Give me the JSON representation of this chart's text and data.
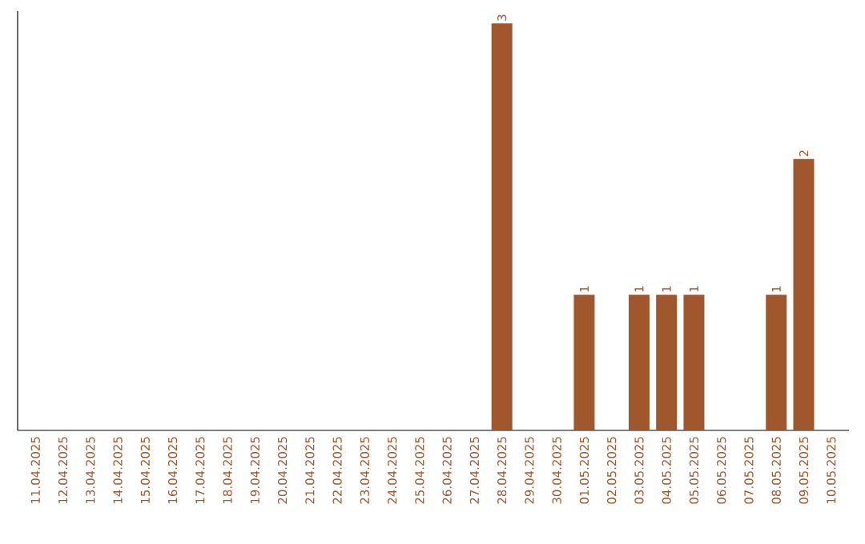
{
  "chart_data": {
    "type": "bar",
    "color": "#a0572b",
    "data_labels": true,
    "categories": [
      "11.04.2025",
      "12.04.2025",
      "13.04.2025",
      "14.04.2025",
      "15.04.2025",
      "16.04.2025",
      "17.04.2025",
      "18.04.2025",
      "19.04.2025",
      "20.04.2025",
      "21.04.2025",
      "22.04.2025",
      "23.04.2025",
      "24.04.2025",
      "25.04.2025",
      "26.04.2025",
      "27.04.2025",
      "28.04.2025",
      "29.04.2025",
      "30.04.2025",
      "01.05.2025",
      "02.05.2025",
      "03.05.2025",
      "04.05.2025",
      "05.05.2025",
      "06.05.2025",
      "07.05.2025",
      "08.05.2025",
      "09.05.2025",
      "10.05.2025"
    ],
    "values": [
      null,
      null,
      null,
      null,
      null,
      null,
      null,
      null,
      null,
      null,
      null,
      null,
      null,
      null,
      null,
      null,
      null,
      3,
      null,
      null,
      1,
      null,
      1,
      1,
      1,
      null,
      null,
      1,
      2,
      null
    ]
  }
}
